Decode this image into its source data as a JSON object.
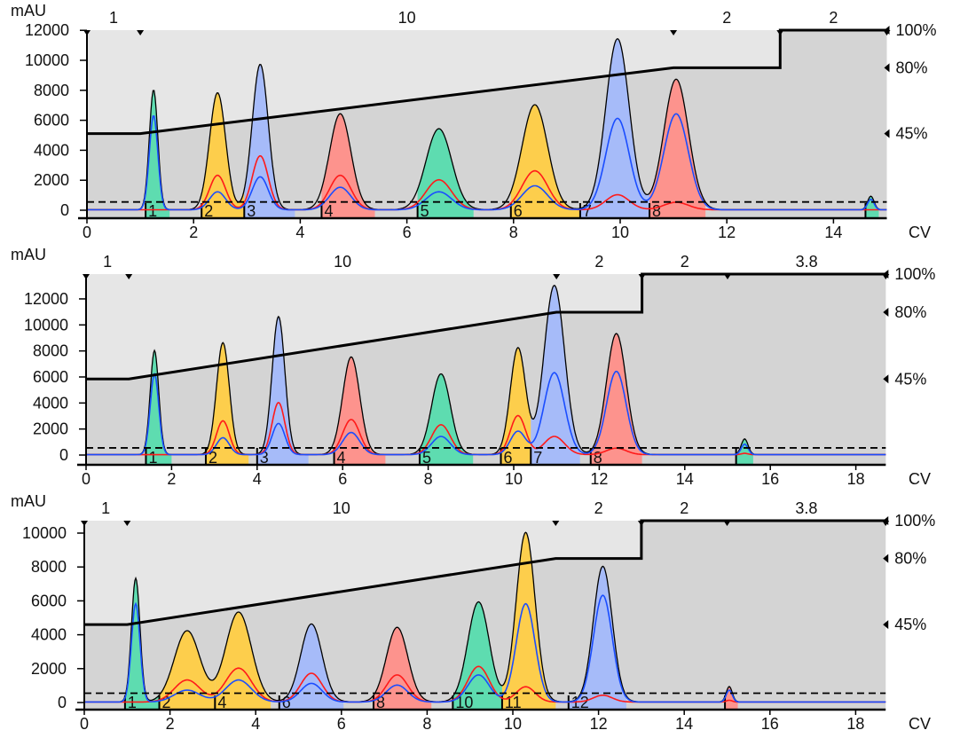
{
  "colors": {
    "green": "#57dcae",
    "yellow": "#ffcd44",
    "blue": "#a3b9fb",
    "red": "#ff8f89",
    "uv_trace": "#000000",
    "red_trace": "#ff1a1a",
    "blue_trace": "#1a4dff",
    "upper_bg": "#e6e6e6",
    "lower_bg": "#d4d4d4"
  },
  "chart_data": [
    {
      "type": "line",
      "title": "",
      "xlabel": "CV",
      "ylabel": "mAU",
      "xlim": [
        0,
        15
      ],
      "ylim": [
        0,
        12000
      ],
      "x_ticks": [
        0,
        2,
        4,
        6,
        8,
        10,
        12,
        14
      ],
      "y_ticks": [
        0,
        2000,
        4000,
        6000,
        8000,
        10000,
        12000
      ],
      "right_axis_ticks": [
        {
          "label": "100%",
          "value": 100
        },
        {
          "label": "80%",
          "value": 80
        },
        {
          "label": "45%",
          "value": 45
        }
      ],
      "segments": [
        {
          "label": "1",
          "start": 0,
          "end": 1
        },
        {
          "label": "10",
          "start": 1,
          "end": 11
        },
        {
          "label": "2",
          "start": 11,
          "end": 13
        },
        {
          "label": "2",
          "start": 13,
          "end": 15
        }
      ],
      "gradient_percent": [
        [
          0,
          45
        ],
        [
          1,
          45
        ],
        [
          11,
          80
        ],
        [
          13,
          80
        ],
        [
          13,
          100
        ],
        [
          15,
          100
        ]
      ],
      "threshold_mAU": 550,
      "peaks": [
        {
          "cv": 1.25,
          "uv": 8000,
          "red": 0,
          "blue": 6300,
          "width": 0.08
        },
        {
          "cv": 2.45,
          "uv": 7800,
          "red": 2300,
          "blue": 1200,
          "width": 0.15
        },
        {
          "cv": 3.25,
          "uv": 9700,
          "red": 3600,
          "blue": 2200,
          "width": 0.15
        },
        {
          "cv": 4.75,
          "uv": 6400,
          "red": 2300,
          "blue": 1500,
          "width": 0.2
        },
        {
          "cv": 6.6,
          "uv": 5400,
          "red": 2000,
          "blue": 1200,
          "width": 0.24
        },
        {
          "cv": 8.4,
          "uv": 7000,
          "red": 2600,
          "blue": 1600,
          "width": 0.24
        },
        {
          "cv": 9.95,
          "uv": 11400,
          "red": 1000,
          "blue": 6100,
          "width": 0.22
        },
        {
          "cv": 11.05,
          "uv": 8700,
          "red": 500,
          "blue": 6400,
          "width": 0.23
        },
        {
          "cv": 14.7,
          "uv": 900,
          "red": 0,
          "blue": 700,
          "width": 0.06
        }
      ],
      "fractions": [
        {
          "label": "1",
          "start": 1.1,
          "end": 1.55,
          "color": "green"
        },
        {
          "label": "2",
          "start": 2.15,
          "end": 2.95,
          "color": "yellow"
        },
        {
          "label": "3",
          "start": 2.95,
          "end": 3.9,
          "color": "blue"
        },
        {
          "label": "4",
          "start": 4.4,
          "end": 5.4,
          "color": "red"
        },
        {
          "label": "5",
          "start": 6.2,
          "end": 7.25,
          "color": "green"
        },
        {
          "label": "6",
          "start": 7.95,
          "end": 9.25,
          "color": "yellow"
        },
        {
          "label": "7",
          "start": 9.25,
          "end": 10.55,
          "color": "blue"
        },
        {
          "label": "8",
          "start": 10.55,
          "end": 11.6,
          "color": "red"
        },
        {
          "label": "",
          "start": 14.6,
          "end": 14.85,
          "color": "green"
        }
      ]
    },
    {
      "type": "line",
      "title": "",
      "xlabel": "CV",
      "ylabel": "mAU",
      "xlim": [
        0,
        18.7
      ],
      "ylim": [
        0,
        13900
      ],
      "x_ticks": [
        0,
        2,
        4,
        6,
        8,
        10,
        12,
        14,
        16,
        18
      ],
      "y_ticks": [
        0,
        2000,
        4000,
        6000,
        8000,
        10000,
        12000
      ],
      "right_axis_ticks": [
        {
          "label": "100%",
          "value": 100
        },
        {
          "label": "80%",
          "value": 80
        },
        {
          "label": "45%",
          "value": 45
        }
      ],
      "segments": [
        {
          "label": "1",
          "start": 0,
          "end": 1
        },
        {
          "label": "10",
          "start": 1,
          "end": 11
        },
        {
          "label": "2",
          "start": 11,
          "end": 13
        },
        {
          "label": "2",
          "start": 13,
          "end": 15
        },
        {
          "label": "3.8",
          "start": 15,
          "end": 18.7
        }
      ],
      "gradient_percent": [
        [
          0,
          45
        ],
        [
          1,
          45
        ],
        [
          11,
          80
        ],
        [
          13,
          80
        ],
        [
          13,
          100
        ],
        [
          18.7,
          100
        ]
      ],
      "threshold_mAU": 550,
      "peaks": [
        {
          "cv": 1.6,
          "uv": 8000,
          "red": 0,
          "blue": 6200,
          "width": 0.1
        },
        {
          "cv": 3.2,
          "uv": 8600,
          "red": 2600,
          "blue": 1300,
          "width": 0.15
        },
        {
          "cv": 4.5,
          "uv": 10600,
          "red": 4000,
          "blue": 2400,
          "width": 0.15
        },
        {
          "cv": 6.2,
          "uv": 7500,
          "red": 2700,
          "blue": 1700,
          "width": 0.2
        },
        {
          "cv": 8.3,
          "uv": 6200,
          "red": 2300,
          "blue": 1400,
          "width": 0.22
        },
        {
          "cv": 10.1,
          "uv": 8200,
          "red": 3000,
          "blue": 1800,
          "width": 0.18
        },
        {
          "cv": 10.95,
          "uv": 13000,
          "red": 1400,
          "blue": 6300,
          "width": 0.24
        },
        {
          "cv": 12.4,
          "uv": 9300,
          "red": 500,
          "blue": 6400,
          "width": 0.23
        },
        {
          "cv": 15.4,
          "uv": 1200,
          "red": 100,
          "blue": 800,
          "width": 0.08
        }
      ],
      "fractions": [
        {
          "label": "1",
          "start": 1.4,
          "end": 2.0,
          "color": "green"
        },
        {
          "label": "2",
          "start": 2.8,
          "end": 3.8,
          "color": "yellow"
        },
        {
          "label": "3",
          "start": 4.0,
          "end": 5.2,
          "color": "blue"
        },
        {
          "label": "4",
          "start": 5.8,
          "end": 7.0,
          "color": "red"
        },
        {
          "label": "5",
          "start": 7.8,
          "end": 9.05,
          "color": "green"
        },
        {
          "label": "6",
          "start": 9.7,
          "end": 10.4,
          "color": "yellow"
        },
        {
          "label": "7",
          "start": 10.4,
          "end": 11.55,
          "color": "blue"
        },
        {
          "label": "8",
          "start": 11.8,
          "end": 13.0,
          "color": "red"
        },
        {
          "label": "",
          "start": 15.2,
          "end": 15.6,
          "color": "green"
        }
      ]
    },
    {
      "type": "line",
      "title": "",
      "xlabel": "CV",
      "ylabel": "mAU",
      "xlim": [
        0,
        18.7
      ],
      "ylim": [
        0,
        10700
      ],
      "x_ticks": [
        0,
        2,
        4,
        6,
        8,
        10,
        12,
        14,
        16,
        18
      ],
      "y_ticks": [
        0,
        2000,
        4000,
        6000,
        8000,
        10000
      ],
      "right_axis_ticks": [
        {
          "label": "100%",
          "value": 100
        },
        {
          "label": "80%",
          "value": 80
        },
        {
          "label": "45%",
          "value": 45
        }
      ],
      "segments": [
        {
          "label": "1",
          "start": 0,
          "end": 1
        },
        {
          "label": "10",
          "start": 1,
          "end": 11
        },
        {
          "label": "2",
          "start": 11,
          "end": 13
        },
        {
          "label": "2",
          "start": 13,
          "end": 15
        },
        {
          "label": "3.8",
          "start": 15,
          "end": 18.7
        }
      ],
      "gradient_percent": [
        [
          0,
          45
        ],
        [
          1,
          45
        ],
        [
          11,
          80
        ],
        [
          13,
          80
        ],
        [
          13,
          100
        ],
        [
          18.7,
          100
        ]
      ],
      "threshold_mAU": 550,
      "peaks": [
        {
          "cv": 1.2,
          "uv": 7300,
          "red": 0,
          "blue": 5800,
          "width": 0.1
        },
        {
          "cv": 2.4,
          "uv": 4200,
          "red": 1300,
          "blue": 700,
          "width": 0.3
        },
        {
          "cv": 3.6,
          "uv": 5300,
          "red": 2000,
          "blue": 1300,
          "width": 0.3
        },
        {
          "cv": 5.3,
          "uv": 4600,
          "red": 1700,
          "blue": 1100,
          "width": 0.25
        },
        {
          "cv": 7.3,
          "uv": 4400,
          "red": 1600,
          "blue": 1000,
          "width": 0.25
        },
        {
          "cv": 9.2,
          "uv": 5900,
          "red": 2100,
          "blue": 1600,
          "width": 0.25
        },
        {
          "cv": 10.3,
          "uv": 10000,
          "red": 900,
          "blue": 5800,
          "width": 0.22
        },
        {
          "cv": 12.1,
          "uv": 8000,
          "red": 400,
          "blue": 6300,
          "width": 0.22
        },
        {
          "cv": 15.05,
          "uv": 900,
          "red": 100,
          "blue": 700,
          "width": 0.07
        }
      ],
      "fractions": [
        {
          "label": "1",
          "start": 0.95,
          "end": 1.75,
          "color": "green"
        },
        {
          "label": "2",
          "start": 1.75,
          "end": 3.05,
          "color": "yellow"
        },
        {
          "label": "4",
          "start": 3.05,
          "end": 4.35,
          "color": "yellow"
        },
        {
          "label": "6",
          "start": 4.55,
          "end": 6.05,
          "color": "blue"
        },
        {
          "label": "8",
          "start": 6.75,
          "end": 8.1,
          "color": "red"
        },
        {
          "label": "10",
          "start": 8.6,
          "end": 9.75,
          "color": "green"
        },
        {
          "label": "11",
          "start": 9.75,
          "end": 11.0,
          "color": "yellow"
        },
        {
          "label": "12",
          "start": 11.3,
          "end": 12.65,
          "color": "blue"
        },
        {
          "label": "",
          "start": 14.95,
          "end": 15.25,
          "color": "red"
        }
      ]
    }
  ]
}
